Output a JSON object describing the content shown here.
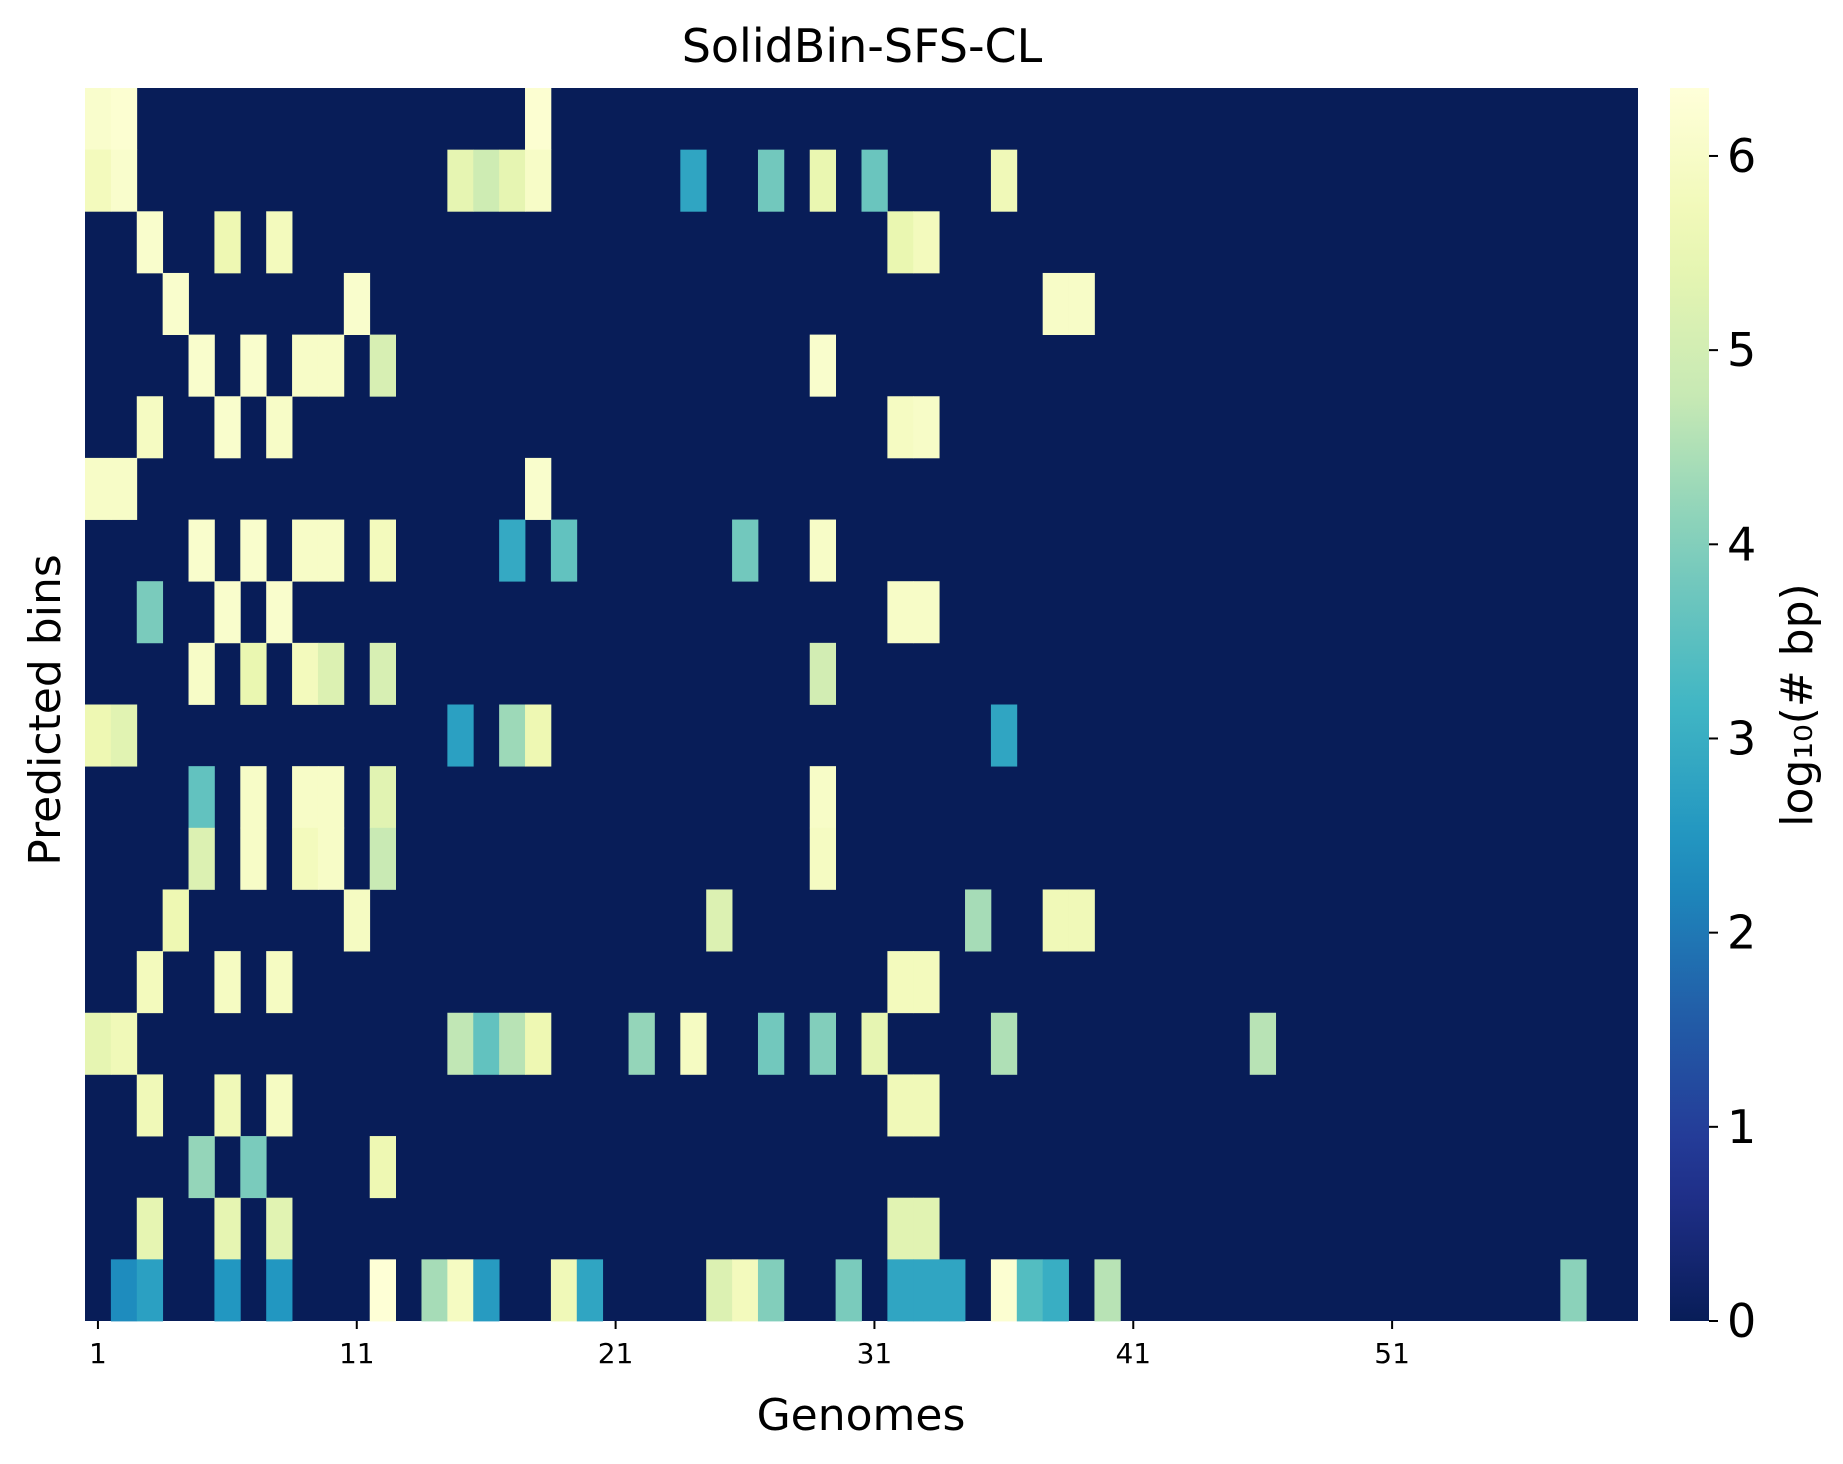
{
  "chart_data": {
    "type": "heatmap",
    "title": "SolidBin-SFS-CL",
    "xlabel": "Genomes",
    "ylabel": "Predicted bins",
    "colorbar_label": "log₁₀(# bp)",
    "x_tick_labels": [
      "1",
      "11",
      "21",
      "31",
      "41",
      "51"
    ],
    "x_tick_positions": [
      1,
      11,
      21,
      31,
      41,
      51
    ],
    "colorbar_ticks": [
      0,
      1,
      2,
      3,
      4,
      5,
      6
    ],
    "vmin": 0,
    "vmax": 6.35,
    "n_genomes": 60,
    "n_bins": 20,
    "background_value": 0,
    "colormap": [
      "#ffffd9",
      "#edf8b1",
      "#c7e9b4",
      "#7fcdbb",
      "#41b6c4",
      "#1d91c0",
      "#225ea8",
      "#253494",
      "#081d58"
    ],
    "cells": [
      [
        0,
        1,
        6.1
      ],
      [
        0,
        2,
        6.2
      ],
      [
        0,
        18,
        6.2
      ],
      [
        1,
        1,
        5.8
      ],
      [
        1,
        2,
        6.1
      ],
      [
        1,
        15,
        5.4
      ],
      [
        1,
        16,
        4.9
      ],
      [
        1,
        17,
        5.4
      ],
      [
        1,
        18,
        6.0
      ],
      [
        1,
        24,
        2.8
      ],
      [
        1,
        27,
        3.8
      ],
      [
        1,
        29,
        5.5
      ],
      [
        1,
        31,
        3.7
      ],
      [
        1,
        36,
        5.7
      ],
      [
        2,
        3,
        6.1
      ],
      [
        2,
        6,
        5.6
      ],
      [
        2,
        8,
        5.8
      ],
      [
        2,
        32,
        5.5
      ],
      [
        2,
        33,
        5.8
      ],
      [
        3,
        4,
        6.1
      ],
      [
        3,
        11,
        6.1
      ],
      [
        3,
        38,
        6.0
      ],
      [
        3,
        39,
        6.0
      ],
      [
        4,
        5,
        6.1
      ],
      [
        4,
        7,
        6.1
      ],
      [
        4,
        9,
        6.0
      ],
      [
        4,
        10,
        6.0
      ],
      [
        4,
        12,
        5.1
      ],
      [
        4,
        29,
        6.1
      ],
      [
        5,
        3,
        5.9
      ],
      [
        5,
        6,
        6.1
      ],
      [
        5,
        8,
        6.0
      ],
      [
        5,
        32,
        5.9
      ],
      [
        5,
        33,
        6.0
      ],
      [
        6,
        1,
        6.0
      ],
      [
        6,
        2,
        6.0
      ],
      [
        6,
        18,
        6.1
      ],
      [
        7,
        5,
        6.1
      ],
      [
        7,
        7,
        6.1
      ],
      [
        7,
        9,
        6.0
      ],
      [
        7,
        10,
        6.0
      ],
      [
        7,
        12,
        5.8
      ],
      [
        7,
        17,
        2.9
      ],
      [
        7,
        19,
        3.6
      ],
      [
        7,
        26,
        3.8
      ],
      [
        7,
        29,
        6.0
      ],
      [
        8,
        3,
        3.9
      ],
      [
        8,
        6,
        6.1
      ],
      [
        8,
        8,
        6.1
      ],
      [
        8,
        32,
        6.0
      ],
      [
        8,
        33,
        6.0
      ],
      [
        9,
        5,
        6.0
      ],
      [
        9,
        7,
        5.5
      ],
      [
        9,
        9,
        5.8
      ],
      [
        9,
        10,
        5.2
      ],
      [
        9,
        12,
        5.1
      ],
      [
        9,
        29,
        5.0
      ],
      [
        10,
        1,
        5.6
      ],
      [
        10,
        2,
        5.3
      ],
      [
        10,
        15,
        2.7
      ],
      [
        10,
        17,
        4.3
      ],
      [
        10,
        18,
        5.6
      ],
      [
        10,
        36,
        2.8
      ],
      [
        11,
        5,
        3.6
      ],
      [
        11,
        7,
        6.0
      ],
      [
        11,
        9,
        6.0
      ],
      [
        11,
        10,
        6.0
      ],
      [
        11,
        12,
        5.3
      ],
      [
        11,
        29,
        6.0
      ],
      [
        12,
        5,
        5.2
      ],
      [
        12,
        7,
        6.0
      ],
      [
        12,
        9,
        5.8
      ],
      [
        12,
        10,
        6.0
      ],
      [
        12,
        12,
        4.8
      ],
      [
        12,
        29,
        5.9
      ],
      [
        13,
        4,
        5.6
      ],
      [
        13,
        11,
        5.9
      ],
      [
        13,
        25,
        5.2
      ],
      [
        13,
        35,
        4.4
      ],
      [
        13,
        38,
        5.7
      ],
      [
        13,
        39,
        5.7
      ],
      [
        14,
        3,
        5.8
      ],
      [
        14,
        6,
        5.9
      ],
      [
        14,
        8,
        5.9
      ],
      [
        14,
        32,
        5.8
      ],
      [
        14,
        33,
        5.8
      ],
      [
        15,
        1,
        5.4
      ],
      [
        15,
        2,
        5.7
      ],
      [
        15,
        15,
        4.7
      ],
      [
        15,
        16,
        3.6
      ],
      [
        15,
        17,
        4.6
      ],
      [
        15,
        18,
        5.6
      ],
      [
        15,
        22,
        4.2
      ],
      [
        15,
        24,
        5.9
      ],
      [
        15,
        27,
        3.8
      ],
      [
        15,
        29,
        4.0
      ],
      [
        15,
        31,
        5.4
      ],
      [
        15,
        36,
        4.5
      ],
      [
        15,
        46,
        4.6
      ],
      [
        16,
        3,
        5.7
      ],
      [
        16,
        6,
        5.7
      ],
      [
        16,
        8,
        5.9
      ],
      [
        16,
        32,
        5.7
      ],
      [
        16,
        33,
        5.7
      ],
      [
        17,
        5,
        4.2
      ],
      [
        17,
        7,
        3.9
      ],
      [
        17,
        12,
        5.6
      ],
      [
        18,
        3,
        5.4
      ],
      [
        18,
        6,
        5.4
      ],
      [
        18,
        8,
        5.3
      ],
      [
        18,
        32,
        5.3
      ],
      [
        18,
        33,
        5.3
      ],
      [
        19,
        2,
        2.3
      ],
      [
        19,
        3,
        2.7
      ],
      [
        19,
        6,
        2.5
      ],
      [
        19,
        8,
        2.5
      ],
      [
        19,
        12,
        6.3
      ],
      [
        19,
        14,
        4.4
      ],
      [
        19,
        15,
        5.9
      ],
      [
        19,
        16,
        2.6
      ],
      [
        19,
        19,
        5.7
      ],
      [
        19,
        20,
        2.8
      ],
      [
        19,
        25,
        5.2
      ],
      [
        19,
        26,
        5.8
      ],
      [
        19,
        27,
        4.0
      ],
      [
        19,
        30,
        3.9
      ],
      [
        19,
        32,
        2.8
      ],
      [
        19,
        33,
        2.8
      ],
      [
        19,
        34,
        2.8
      ],
      [
        19,
        36,
        6.2
      ],
      [
        19,
        37,
        3.4
      ],
      [
        19,
        38,
        3.0
      ],
      [
        19,
        40,
        4.6
      ],
      [
        19,
        58,
        4.1
      ]
    ]
  }
}
